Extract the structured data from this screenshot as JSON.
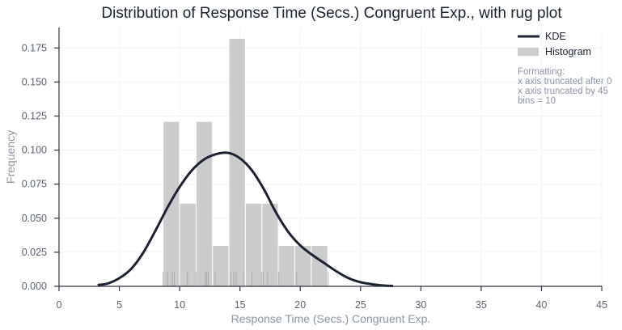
{
  "chart_data": {
    "type": "bar",
    "title": "Distribution of Response Time (Secs.) Congruent Exp., with rug plot",
    "xlabel": "Response Time (Secs.) Congruent Exp.",
    "ylabel": "Frequency",
    "xlim": [
      0,
      45
    ],
    "ylim": [
      0,
      0.19
    ],
    "xticks": [
      0,
      5,
      10,
      15,
      20,
      25,
      30,
      35,
      40,
      45
    ],
    "yticks": [
      0.0,
      0.025,
      0.05,
      0.075,
      0.1,
      0.125,
      0.15,
      0.175
    ],
    "ytick_labels": [
      "0.000",
      "0.025",
      "0.050",
      "0.075",
      "0.100",
      "0.125",
      "0.150",
      "0.175"
    ],
    "histogram": {
      "name": "Histogram",
      "bin_edges": [
        8.63,
        9.99,
        11.36,
        12.72,
        14.09,
        15.45,
        16.82,
        18.18,
        19.55,
        20.91,
        22.28
      ],
      "values": [
        0.121,
        0.061,
        0.121,
        0.03,
        0.182,
        0.061,
        0.061,
        0.03,
        0.03,
        0.03
      ]
    },
    "kde": {
      "name": "KDE",
      "x": [
        3.2,
        4,
        5,
        6,
        7,
        8,
        9,
        10,
        11,
        12,
        13,
        14,
        15,
        16,
        17,
        18,
        19,
        20,
        21,
        22,
        23,
        24,
        25,
        26,
        27,
        27.7
      ],
      "y": [
        0.001,
        0.002,
        0.006,
        0.013,
        0.025,
        0.041,
        0.058,
        0.073,
        0.085,
        0.093,
        0.097,
        0.098,
        0.094,
        0.085,
        0.071,
        0.054,
        0.04,
        0.03,
        0.023,
        0.017,
        0.011,
        0.006,
        0.003,
        0.0015,
        0.0005,
        0.0003
      ]
    },
    "rug": [
      8.63,
      8.99,
      9.4,
      9.56,
      10.64,
      11.34,
      12.13,
      12.24,
      12.37,
      12.94,
      14.48,
      14.69,
      14.23,
      15.3,
      16.0,
      16.79,
      16.93,
      17.29,
      18.2,
      19.71,
      22.33
    ],
    "legend": {
      "position": "top-right"
    },
    "annotation": [
      "Formatting:",
      "x axis truncated after 0",
      "x axis truncated by 45",
      "bins = 10"
    ],
    "colors": {
      "kde": "#1b2333",
      "hist": "#cccccc"
    }
  }
}
